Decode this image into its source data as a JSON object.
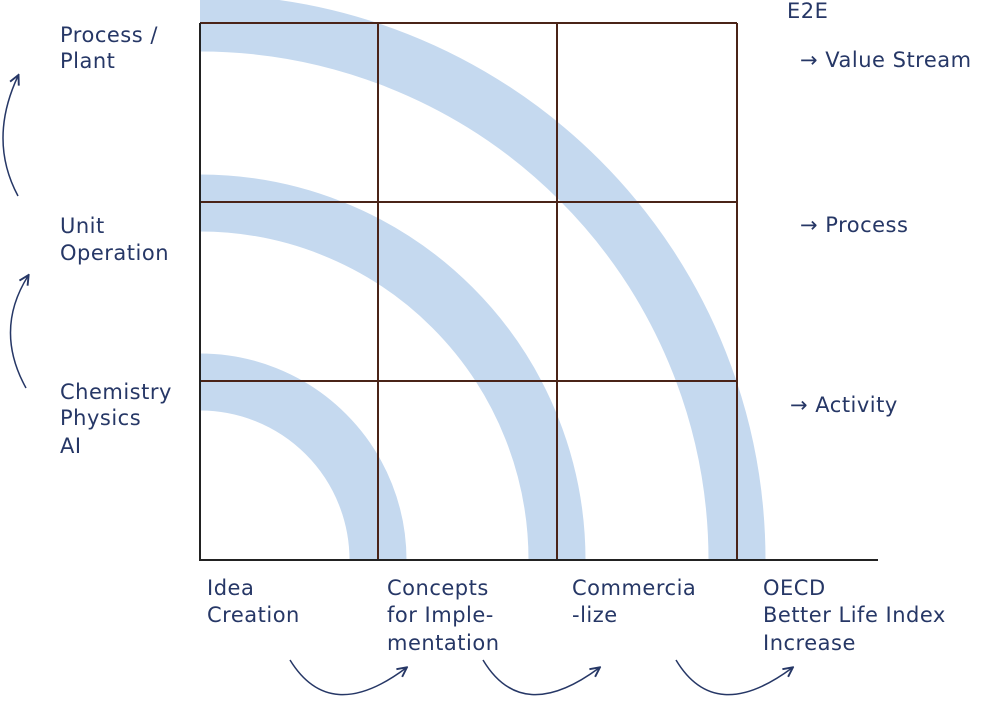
{
  "left_labels": [
    [
      "Process /",
      "Plant"
    ],
    [
      "Unit",
      "Operation"
    ],
    [
      "Chemistry",
      "Physics",
      "AI"
    ]
  ],
  "right_labels": [
    "E2E",
    "→ Value Stream",
    "→ Process",
    "→ Activity"
  ],
  "bottom_labels": [
    [
      "Idea",
      "Creation"
    ],
    [
      "Concepts",
      "for Imple-",
      "mentation"
    ],
    [
      "Commercia",
      "-lize"
    ],
    [
      "OECD",
      "Better Life Index",
      "Increase"
    ]
  ]
}
